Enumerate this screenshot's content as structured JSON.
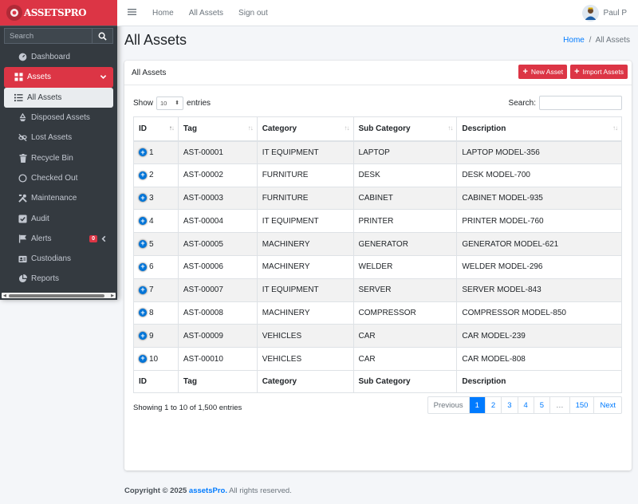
{
  "brand": {
    "name": "ASSETSPRO"
  },
  "sidebar": {
    "search_placeholder": "Search",
    "items": [
      {
        "label": "Dashboard",
        "icon": "dashboard-icon"
      },
      {
        "label": "Assets",
        "icon": "grid-icon"
      },
      {
        "label": "All Assets",
        "icon": "list-icon"
      },
      {
        "label": "Disposed Assets",
        "icon": "recycle-icon"
      },
      {
        "label": "Lost Assets",
        "icon": "unlink-icon"
      },
      {
        "label": "Recycle Bin",
        "icon": "trash-icon"
      },
      {
        "label": "Checked Out",
        "icon": "circle-icon"
      },
      {
        "label": "Maintenance",
        "icon": "tools-icon"
      },
      {
        "label": "Audit",
        "icon": "check-square-icon"
      },
      {
        "label": "Alerts",
        "icon": "flag-icon",
        "badge": "0"
      },
      {
        "label": "Custodians",
        "icon": "id-card-icon"
      },
      {
        "label": "Reports",
        "icon": "pie-chart-icon"
      }
    ]
  },
  "topbar": {
    "links": [
      "Home",
      "All Assets",
      "Sign out"
    ],
    "user": "Paul P"
  },
  "page": {
    "title": "All Assets",
    "breadcrumb_home": "Home",
    "breadcrumb_sep": "/",
    "breadcrumb_current": "All Assets"
  },
  "card": {
    "title": "All Assets",
    "new_button": "New Asset",
    "import_button": "Import Assets",
    "show_label": "Show",
    "entries_value": "10",
    "entries_label": "entries",
    "search_label": "Search:",
    "columns": [
      "ID",
      "Tag",
      "Category",
      "Sub Category",
      "Description"
    ],
    "rows": [
      [
        "1",
        "AST-00001",
        "IT EQUIPMENT",
        "LAPTOP",
        "LAPTOP MODEL-356"
      ],
      [
        "2",
        "AST-00002",
        "FURNITURE",
        "DESK",
        "DESK MODEL-700"
      ],
      [
        "3",
        "AST-00003",
        "FURNITURE",
        "CABINET",
        "CABINET MODEL-935"
      ],
      [
        "4",
        "AST-00004",
        "IT EQUIPMENT",
        "PRINTER",
        "PRINTER MODEL-760"
      ],
      [
        "5",
        "AST-00005",
        "MACHINERY",
        "GENERATOR",
        "GENERATOR MODEL-621"
      ],
      [
        "6",
        "AST-00006",
        "MACHINERY",
        "WELDER",
        "WELDER MODEL-296"
      ],
      [
        "7",
        "AST-00007",
        "IT EQUIPMENT",
        "SERVER",
        "SERVER MODEL-843"
      ],
      [
        "8",
        "AST-00008",
        "MACHINERY",
        "COMPRESSOR",
        "COMPRESSOR MODEL-850"
      ],
      [
        "9",
        "AST-00009",
        "VEHICLES",
        "CAR",
        "CAR MODEL-239"
      ],
      [
        "10",
        "AST-00010",
        "VEHICLES",
        "CAR",
        "CAR MODEL-808"
      ]
    ],
    "info": "Showing 1 to 10 of 1,500 entries",
    "pagination": [
      "Previous",
      "1",
      "2",
      "3",
      "4",
      "5",
      "…",
      "150",
      "Next"
    ]
  },
  "footer": {
    "prefix": "Copyright © 2025",
    "brand": "assetsPro.",
    "suffix": "All rights reserved."
  },
  "colors": {
    "accent": "#dc3545",
    "sidebar": "#343a40",
    "link": "#007bff"
  }
}
